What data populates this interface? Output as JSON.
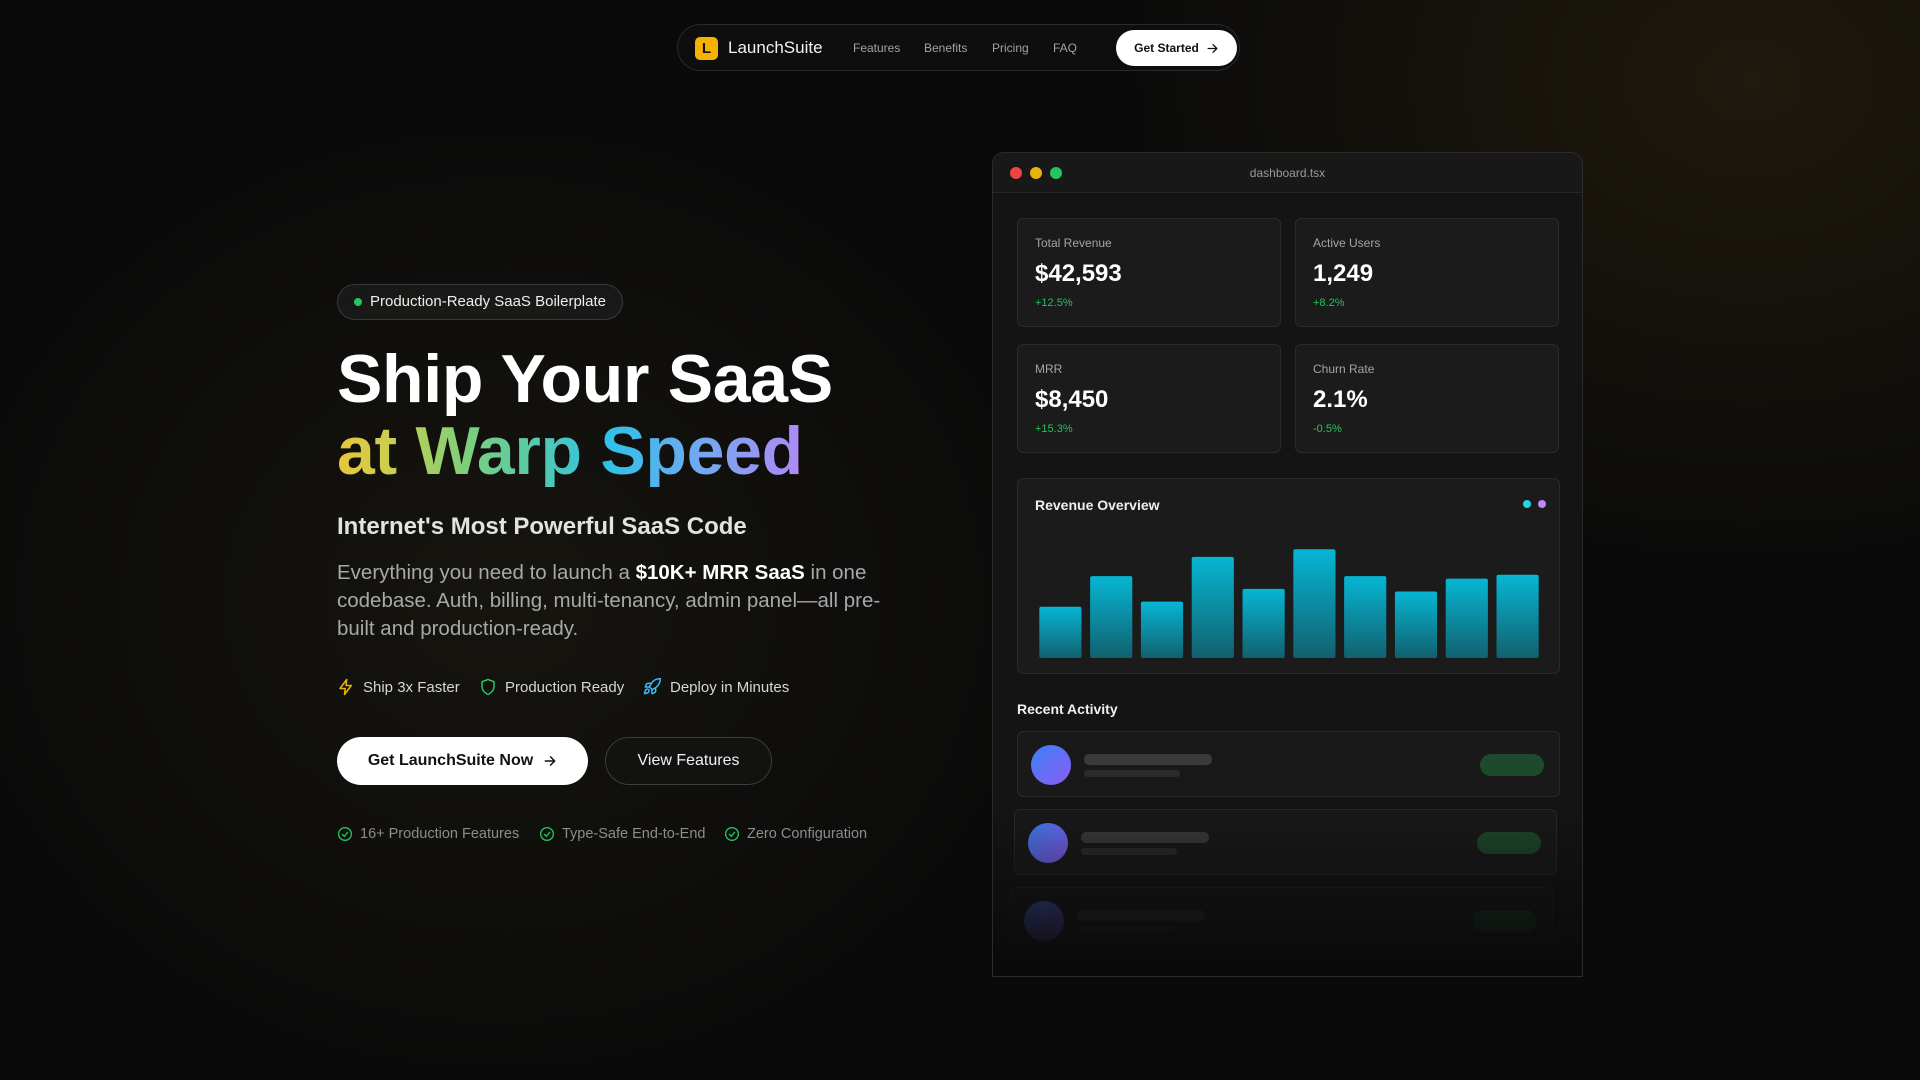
{
  "nav": {
    "logo": "L",
    "brand": "LaunchSuite",
    "links": [
      "Features",
      "Benefits",
      "Pricing",
      "FAQ"
    ],
    "cta": "Get Started"
  },
  "hero": {
    "badge": "Production-Ready SaaS Boilerplate",
    "headline": "Ship Your SaaS",
    "headline_accent": [
      "at",
      "Warp",
      "Speed"
    ],
    "subheading": "Internet's Most Powerful SaaS Code",
    "description": {
      "before": "Everything you need to launch a ",
      "highlight": "$10K+ MRR SaaS",
      "after": " in one codebase. Auth, billing, multi-tenancy, admin panel—all pre-built and production-ready."
    },
    "features": [
      "Ship 3x Faster",
      "Production Ready",
      "Deploy in Minutes"
    ],
    "primary_cta": "Get LaunchSuite Now",
    "secondary_cta": "View Features",
    "checks": [
      "16+ Production Features",
      "Type-Safe End-to-End",
      "Zero Configuration"
    ]
  },
  "dashboard": {
    "filename": "dashboard.tsx",
    "stats": [
      {
        "label": "Total Revenue",
        "value": "$42,593",
        "change": "+12.5%"
      },
      {
        "label": "Active Users",
        "value": "1,249",
        "change": "+8.2%"
      },
      {
        "label": "MRR",
        "value": "$8,450",
        "change": "+15.3%"
      },
      {
        "label": "Churn Rate",
        "value": "2.1%",
        "change": "-0.5%"
      }
    ],
    "chart_data": {
      "type": "bar",
      "title": "Revenue Overview",
      "values": [
        40,
        64,
        44,
        79,
        54,
        85,
        64,
        52,
        62,
        65
      ],
      "ylim": [
        0,
        100
      ],
      "color": "#06b6d4"
    },
    "recent_activity": "Recent Activity"
  }
}
